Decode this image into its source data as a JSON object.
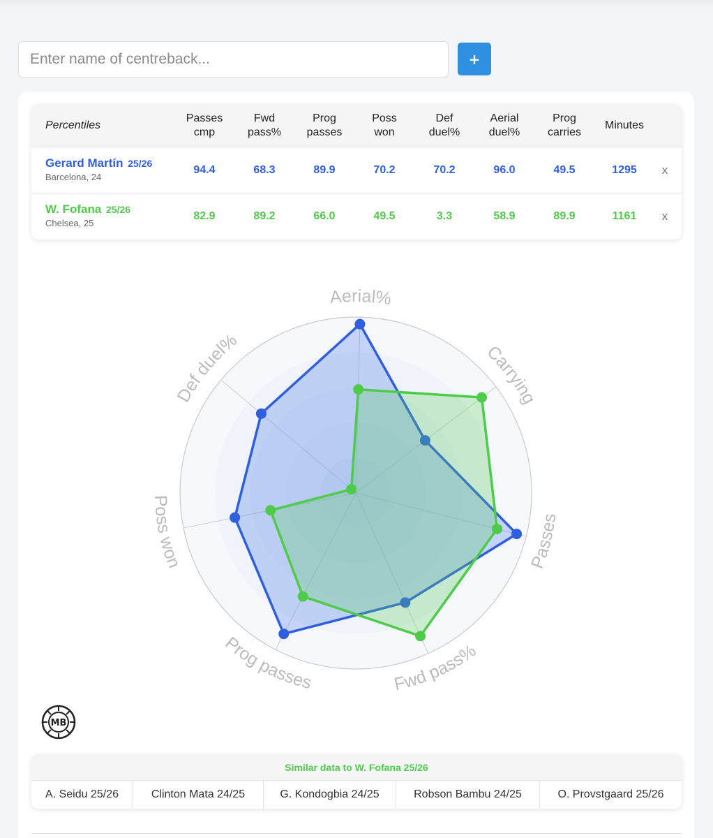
{
  "search": {
    "placeholder": "Enter name of centreback...",
    "add_label": "+"
  },
  "colors": {
    "player1": "#2f5fdf",
    "player2": "#4fcb4a",
    "similar_header": "#4fcb4a",
    "accent_button": "#2f8fe0"
  },
  "table": {
    "corner_label": "Percentiles",
    "columns": [
      "Passes cmp",
      "Fwd pass%",
      "Prog passes",
      "Poss won",
      "Def duel%",
      "Aerial duel%",
      "Prog carries",
      "Minutes"
    ],
    "column_lines": [
      [
        "Passes",
        "cmp"
      ],
      [
        "Fwd",
        "pass%"
      ],
      [
        "Prog",
        "passes"
      ],
      [
        "Poss",
        "won"
      ],
      [
        "Def",
        "duel%"
      ],
      [
        "Aerial",
        "duel%"
      ],
      [
        "Prog",
        "carries"
      ],
      [
        "Minutes"
      ]
    ],
    "rows": [
      {
        "name": "Gerard Martín",
        "season": "25/26",
        "sub": "Barcelona, 24",
        "values": [
          "94.4",
          "68.3",
          "89.9",
          "70.2",
          "70.2",
          "96.0",
          "49.5",
          "1295"
        ],
        "remove": "x"
      },
      {
        "name": "W. Fofana",
        "season": "25/26",
        "sub": "Chelsea, 25",
        "values": [
          "82.9",
          "89.2",
          "66.0",
          "49.5",
          "3.3",
          "58.9",
          "89.9",
          "1161"
        ],
        "remove": "x"
      }
    ]
  },
  "chart_data": {
    "type": "radar",
    "axes": [
      "Aerial%",
      "Carrying",
      "Passes",
      "Fwd pass%",
      "Prog passes",
      "Poss won",
      "Def duel%"
    ],
    "range": [
      0,
      100
    ],
    "series": [
      {
        "name": "Gerard Martín 25/26",
        "values": [
          96.0,
          49.5,
          94.4,
          68.3,
          89.9,
          70.2,
          70.2
        ]
      },
      {
        "name": "W. Fofana 25/26",
        "values": [
          58.9,
          89.9,
          82.9,
          89.2,
          66.0,
          49.5,
          3.3
        ]
      }
    ]
  },
  "logo": {
    "text": "MB"
  },
  "similar": {
    "header": "Similar data to W. Fofana 25/26",
    "players": [
      "A. Seidu 25/26",
      "Clinton Mata 24/25",
      "G. Kondogbia 24/25",
      "Robson Bambu 24/25",
      "O. Provstgaard 25/26"
    ]
  }
}
